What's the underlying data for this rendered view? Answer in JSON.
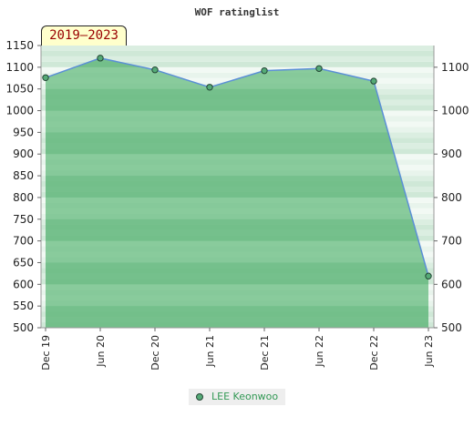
{
  "chart_data": {
    "type": "area",
    "title": "WOF ratinglist",
    "period_label": "2019–2023",
    "categories": [
      "Dec 19",
      "Jun 20",
      "Dec 20",
      "Jun 21",
      "Dec 21",
      "Jun 22",
      "Dec 22",
      "Jun 23"
    ],
    "series": [
      {
        "name": "LEE Keonwoo",
        "values": [
          1076,
          1121,
          1094,
          1054,
          1092,
          1097,
          1068,
          619
        ]
      }
    ],
    "ylim": [
      500,
      1150
    ],
    "yticks_left": [
      500,
      550,
      600,
      650,
      700,
      750,
      800,
      850,
      900,
      950,
      1000,
      1050,
      1100,
      1150
    ],
    "yticks_right": [
      500,
      600,
      700,
      800,
      900,
      1000,
      1100
    ],
    "grid": true,
    "legend_position": "bottom-center",
    "colors": {
      "area_fill": "#5fb87a",
      "line": "#5b8fd6",
      "marker_fill": "#55aa77",
      "marker_stroke": "#224433",
      "band_a": "#e8f4ec",
      "band_b": "#cfe8d7",
      "period_box_bg": "#ffffcc",
      "period_text": "#990000",
      "legend_text": "#339955"
    }
  }
}
